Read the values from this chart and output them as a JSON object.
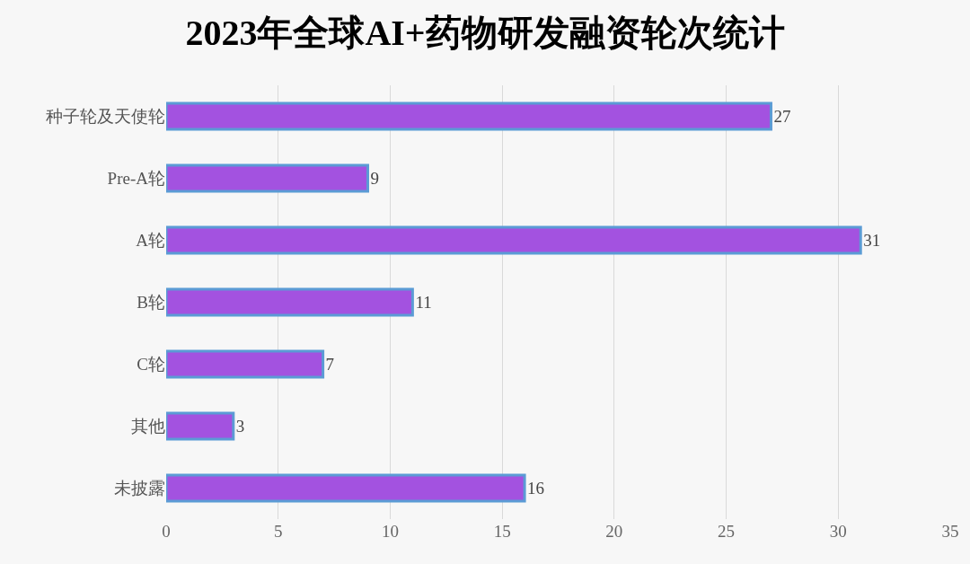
{
  "chart_data": {
    "type": "bar",
    "orientation": "horizontal",
    "title": "2023年全球AI+药物研发融资轮次统计",
    "categories": [
      "种子轮及天使轮",
      "Pre-A轮",
      "A轮",
      "B轮",
      "C轮",
      "其他",
      "未披露"
    ],
    "values": [
      27,
      9,
      31,
      11,
      7,
      3,
      16
    ],
    "color": "#a352e0",
    "xlim": [
      0,
      35
    ],
    "xticks": [
      0,
      5,
      10,
      15,
      20,
      25,
      30,
      35
    ],
    "grid": "x",
    "data_labels": true
  }
}
